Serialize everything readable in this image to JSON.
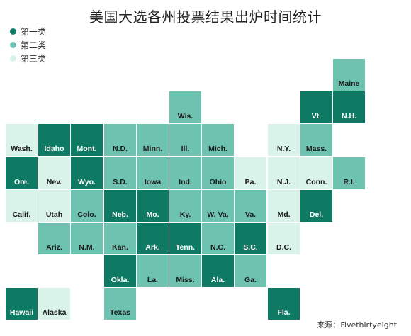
{
  "title": "美国大选各州投票结果出炉时间统计",
  "colors": {
    "c1": "#0f7a64",
    "c2": "#6ec2b0",
    "c3": "#d9f2ea"
  },
  "legend": [
    {
      "label": "第一类",
      "cls": "c1"
    },
    {
      "label": "第二类",
      "cls": "c2"
    },
    {
      "label": "第三类",
      "cls": "c3"
    }
  ],
  "states": [
    {
      "label": "Maine",
      "cls": "c2",
      "col": 10,
      "row": 0
    },
    {
      "label": "Wis.",
      "cls": "c2",
      "col": 5,
      "row": 1
    },
    {
      "label": "Vt.",
      "cls": "c1",
      "col": 9,
      "row": 1
    },
    {
      "label": "N.H.",
      "cls": "c1",
      "col": 10,
      "row": 1
    },
    {
      "label": "Wash.",
      "cls": "c3",
      "col": 0,
      "row": 2
    },
    {
      "label": "Idaho",
      "cls": "c1",
      "col": 1,
      "row": 2
    },
    {
      "label": "Mont.",
      "cls": "c1",
      "col": 2,
      "row": 2
    },
    {
      "label": "N.D.",
      "cls": "c2",
      "col": 3,
      "row": 2
    },
    {
      "label": "Minn.",
      "cls": "c2",
      "col": 4,
      "row": 2
    },
    {
      "label": "Ill.",
      "cls": "c2",
      "col": 5,
      "row": 2
    },
    {
      "label": "Mich.",
      "cls": "c2",
      "col": 6,
      "row": 2
    },
    {
      "label": "N.Y.",
      "cls": "c3",
      "col": 8,
      "row": 2
    },
    {
      "label": "Mass.",
      "cls": "c2",
      "col": 9,
      "row": 2
    },
    {
      "label": "Ore.",
      "cls": "c1",
      "col": 0,
      "row": 3
    },
    {
      "label": "Nev.",
      "cls": "c3",
      "col": 1,
      "row": 3
    },
    {
      "label": "Wyo.",
      "cls": "c1",
      "col": 2,
      "row": 3
    },
    {
      "label": "S.D.",
      "cls": "c2",
      "col": 3,
      "row": 3
    },
    {
      "label": "Iowa",
      "cls": "c2",
      "col": 4,
      "row": 3
    },
    {
      "label": "Ind.",
      "cls": "c2",
      "col": 5,
      "row": 3
    },
    {
      "label": "Ohio",
      "cls": "c2",
      "col": 6,
      "row": 3
    },
    {
      "label": "Pa.",
      "cls": "c3",
      "col": 7,
      "row": 3
    },
    {
      "label": "N.J.",
      "cls": "c3",
      "col": 8,
      "row": 3
    },
    {
      "label": "Conn.",
      "cls": "c3",
      "col": 9,
      "row": 3
    },
    {
      "label": "R.I.",
      "cls": "c2",
      "col": 10,
      "row": 3
    },
    {
      "label": "Calif.",
      "cls": "c3",
      "col": 0,
      "row": 4
    },
    {
      "label": "Utah",
      "cls": "c3",
      "col": 1,
      "row": 4
    },
    {
      "label": "Colo.",
      "cls": "c2",
      "col": 2,
      "row": 4
    },
    {
      "label": "Neb.",
      "cls": "c1",
      "col": 3,
      "row": 4
    },
    {
      "label": "Mo.",
      "cls": "c1",
      "col": 4,
      "row": 4
    },
    {
      "label": "Ky.",
      "cls": "c2",
      "col": 5,
      "row": 4
    },
    {
      "label": "W. Va.",
      "cls": "c2",
      "col": 6,
      "row": 4
    },
    {
      "label": "Va.",
      "cls": "c2",
      "col": 7,
      "row": 4
    },
    {
      "label": "Md.",
      "cls": "c3",
      "col": 8,
      "row": 4
    },
    {
      "label": "Del.",
      "cls": "c1",
      "col": 9,
      "row": 4
    },
    {
      "label": "Ariz.",
      "cls": "c2",
      "col": 1,
      "row": 5
    },
    {
      "label": "N.M.",
      "cls": "c2",
      "col": 2,
      "row": 5
    },
    {
      "label": "Kan.",
      "cls": "c2",
      "col": 3,
      "row": 5
    },
    {
      "label": "Ark.",
      "cls": "c1",
      "col": 4,
      "row": 5
    },
    {
      "label": "Tenn.",
      "cls": "c1",
      "col": 5,
      "row": 5
    },
    {
      "label": "N.C.",
      "cls": "c2",
      "col": 6,
      "row": 5
    },
    {
      "label": "S.C.",
      "cls": "c1",
      "col": 7,
      "row": 5
    },
    {
      "label": "D.C.",
      "cls": "c3",
      "col": 8,
      "row": 5
    },
    {
      "label": "Okla.",
      "cls": "c1",
      "col": 3,
      "row": 6
    },
    {
      "label": "La.",
      "cls": "c2",
      "col": 4,
      "row": 6
    },
    {
      "label": "Miss.",
      "cls": "c2",
      "col": 5,
      "row": 6
    },
    {
      "label": "Ala.",
      "cls": "c1",
      "col": 6,
      "row": 6
    },
    {
      "label": "Ga.",
      "cls": "c2",
      "col": 7,
      "row": 6
    },
    {
      "label": "Hawaii",
      "cls": "c1",
      "col": 0,
      "row": 7
    },
    {
      "label": "Alaska",
      "cls": "c3",
      "col": 1,
      "row": 7
    },
    {
      "label": "Texas",
      "cls": "c2",
      "col": 3,
      "row": 7
    },
    {
      "label": "Fla.",
      "cls": "c1",
      "col": 8,
      "row": 7
    }
  ],
  "source": "来源：Fivethirtyeight"
}
